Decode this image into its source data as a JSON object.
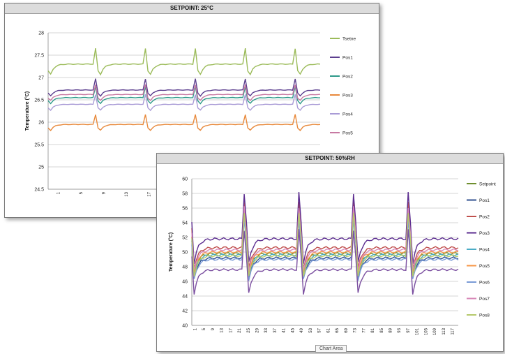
{
  "chart_data": [
    {
      "type": "line",
      "title": "SETPOINT: 25°C",
      "ylabel": "Temperature (°C)",
      "xlabel": "",
      "ylim": [
        24.5,
        28
      ],
      "yticks": [
        24.5,
        25,
        25.5,
        26,
        26.5,
        27,
        27.5,
        28
      ],
      "xtick_labels": [
        "1",
        "5",
        "9",
        "13",
        "17",
        "21",
        "25",
        "29",
        "33",
        "37",
        "41",
        "45"
      ],
      "grid": true,
      "legend_position": "right",
      "period": 20,
      "n_points": 110,
      "series": [
        {
          "name": "Tsetne",
          "color": "#9bbb59",
          "base": 27.3,
          "amp": 0.35,
          "dip": -0.35
        },
        {
          "name": "Pos1",
          "color": "#5c3f8f",
          "base": 26.72,
          "amp": 0.25,
          "dip": -0.2
        },
        {
          "name": "Pos2",
          "color": "#2e9a8a",
          "base": 26.55,
          "amp": 0.25,
          "dip": -0.2
        },
        {
          "name": "Pos3",
          "color": "#e8893b",
          "base": 25.95,
          "amp": 0.22,
          "dip": -0.2
        },
        {
          "name": "Pos4",
          "color": "#a99bd6",
          "base": 26.4,
          "amp": 0.22,
          "dip": -0.2
        },
        {
          "name": "Pos5",
          "color": "#c779a2",
          "base": 26.62,
          "amp": 0.22,
          "dip": -0.2
        }
      ]
    },
    {
      "type": "line",
      "title": "SETPOINT: 50%RH",
      "ylabel": "Temperature (°C)",
      "xlabel": "",
      "ylim": [
        40,
        60
      ],
      "yticks": [
        40,
        42,
        44,
        46,
        48,
        50,
        52,
        54,
        56,
        58,
        60
      ],
      "xtick_labels": [
        "1",
        "5",
        "9",
        "13",
        "17",
        "21",
        "25",
        "29",
        "33",
        "37",
        "41",
        "45",
        "49",
        "53",
        "57",
        "61",
        "65",
        "69",
        "73",
        "77",
        "81",
        "85",
        "89",
        "93",
        "97",
        "101",
        "105",
        "109",
        "113",
        "117"
      ],
      "grid": true,
      "legend_position": "right",
      "period": 24,
      "n_points": 118,
      "series": [
        {
          "name": "Setpoint",
          "color": "#6f8f2f",
          "base": 49.8,
          "amp": 7.0,
          "dip": -3.0
        },
        {
          "name": "Pos1",
          "color": "#2f4f8f",
          "base": 49.2,
          "amp": 7.0,
          "dip": -3.0
        },
        {
          "name": "Pos2",
          "color": "#c0504d",
          "base": 50.6,
          "amp": 7.5,
          "dip": -3.0
        },
        {
          "name": "Pos3",
          "color": "#5b2c8f",
          "base": 51.8,
          "amp": 7.5,
          "dip": -3.5
        },
        {
          "name": "Pos4",
          "color": "#4bacc6",
          "base": 49.6,
          "amp": 7.0,
          "dip": -3.0
        },
        {
          "name": "Pos5",
          "color": "#f79646",
          "base": 50.0,
          "amp": 7.0,
          "dip": -3.0
        },
        {
          "name": "Pos6",
          "color": "#7a9bd6",
          "base": 49.0,
          "amp": 6.5,
          "dip": -3.0
        },
        {
          "name": "Pos7",
          "color": "#d889b8",
          "base": 50.3,
          "amp": 7.0,
          "dip": -3.0
        },
        {
          "name": "Pos8",
          "color": "#b5c96a",
          "base": 49.5,
          "amp": 7.0,
          "dip": -3.0
        },
        {
          "name": "",
          "color": "#7b4fa0",
          "base": 47.6,
          "amp": 6.5,
          "dip": -3.5
        }
      ]
    }
  ],
  "ui": {
    "chart_area_label": "Chart Area"
  }
}
